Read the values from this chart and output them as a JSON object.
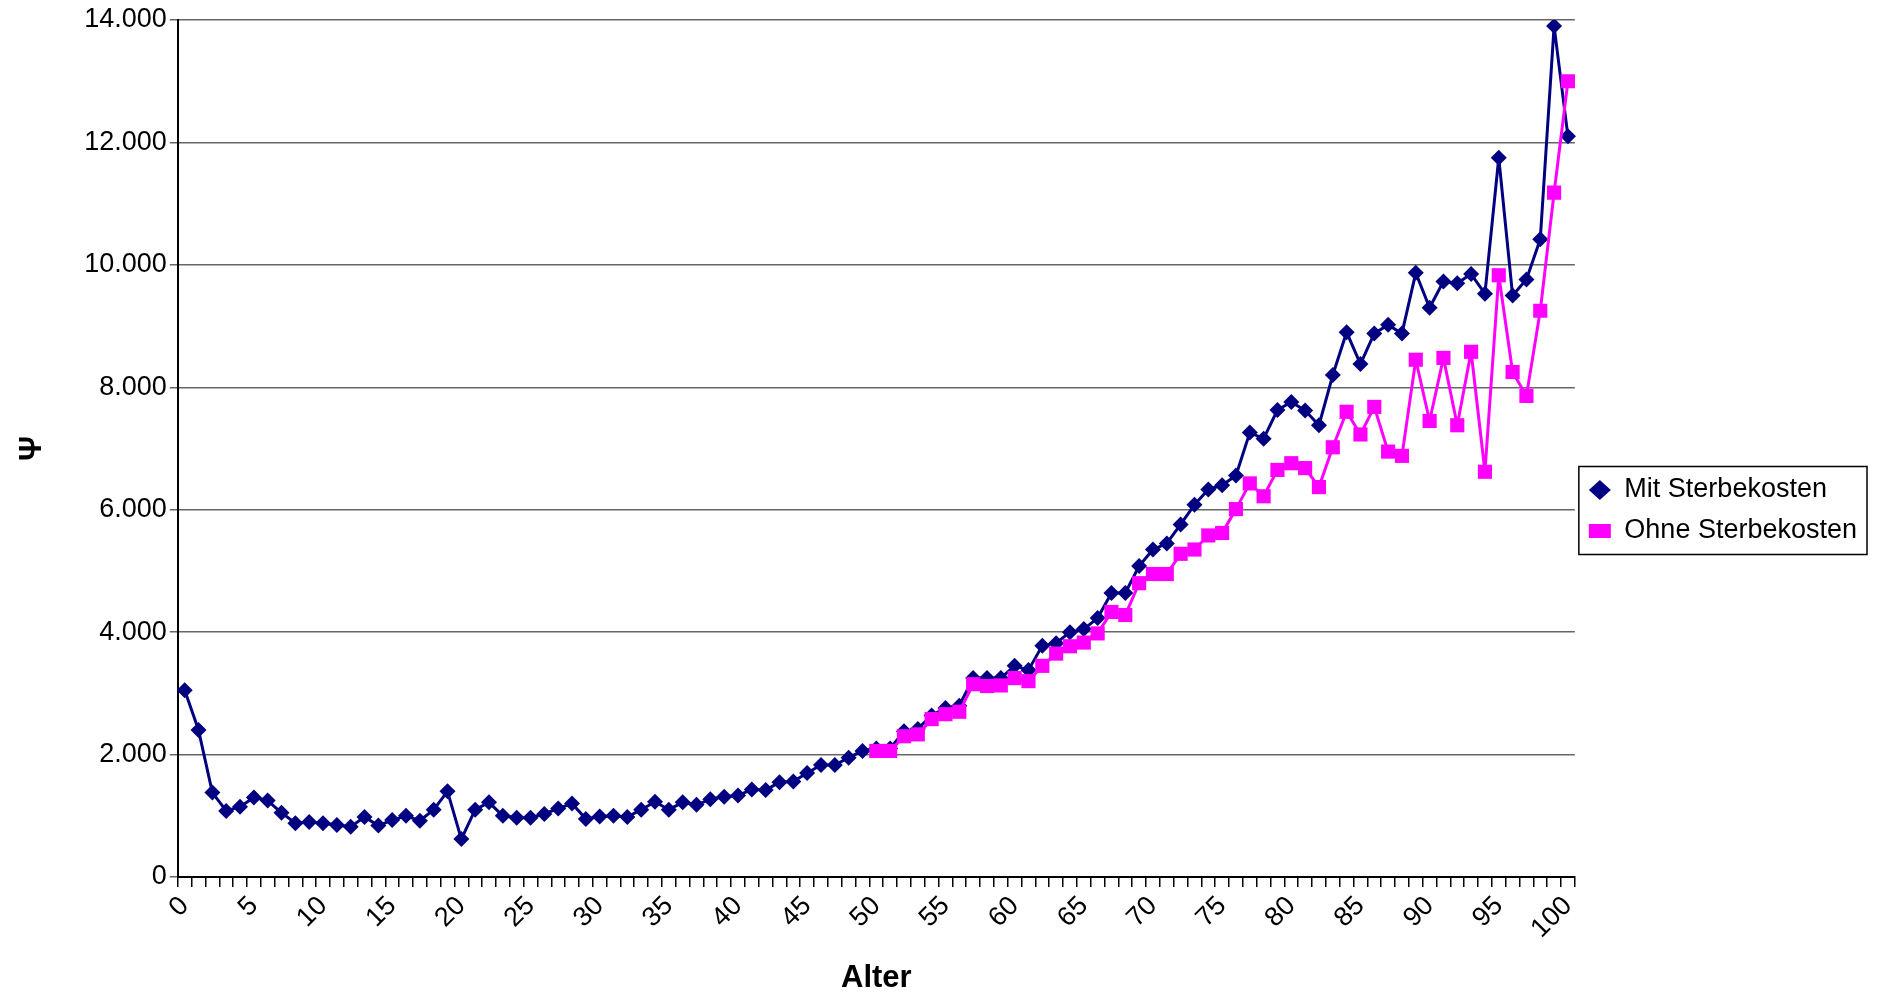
{
  "chart_data": {
    "type": "line",
    "xlabel": "Alter",
    "ylabel": "Ψ",
    "categories": [
      "0",
      null,
      null,
      null,
      null,
      "5",
      null,
      null,
      null,
      null,
      "10",
      null,
      null,
      null,
      null,
      "15",
      null,
      null,
      null,
      null,
      "20",
      null,
      null,
      null,
      null,
      "25",
      null,
      null,
      null,
      null,
      "30",
      null,
      null,
      null,
      null,
      "35",
      null,
      null,
      null,
      null,
      "40",
      null,
      null,
      null,
      null,
      "45",
      null,
      null,
      null,
      null,
      "50",
      null,
      null,
      null,
      null,
      "55",
      null,
      null,
      null,
      null,
      "60",
      null,
      null,
      null,
      null,
      "65",
      null,
      null,
      null,
      null,
      "70",
      null,
      null,
      null,
      null,
      "75",
      null,
      null,
      null,
      null,
      "80",
      null,
      null,
      null,
      null,
      "85",
      null,
      null,
      null,
      null,
      "90",
      null,
      null,
      null,
      null,
      "95",
      null,
      null,
      null,
      null,
      "100"
    ],
    "series": [
      {
        "name": "Mit Sterbekosten",
        "color": "#000080",
        "marker": "diamond",
        "values": [
          3050,
          2400,
          1380,
          1080,
          1150,
          1300,
          1250,
          1050,
          880,
          900,
          880,
          850,
          820,
          980,
          840,
          930,
          1000,
          920,
          1100,
          1400,
          620,
          1100,
          1220,
          1000,
          970,
          970,
          1030,
          1120,
          1200,
          950,
          990,
          1000,
          980,
          1100,
          1230,
          1100,
          1220,
          1180,
          1270,
          1310,
          1330,
          1430,
          1420,
          1550,
          1560,
          1700,
          1830,
          1830,
          1950,
          2060,
          2100,
          2100,
          2380,
          2420,
          2640,
          2760,
          2800,
          3250,
          3250,
          3250,
          3450,
          3380,
          3780,
          3820,
          4000,
          4050,
          4230,
          4640,
          4640,
          5080,
          5350,
          5450,
          5760,
          6080,
          6330,
          6400,
          6560,
          7260,
          7160,
          7630,
          7760,
          7620,
          7380,
          8200,
          8900,
          8380,
          8880,
          9020,
          8880,
          9870,
          9300,
          9730,
          9700,
          9850,
          9530,
          11750,
          9500,
          9760,
          10420,
          13900,
          12100
        ]
      },
      {
        "name": "Ohne Sterbekosten",
        "color": "#ff00ff",
        "marker": "square",
        "values": [
          null,
          null,
          null,
          null,
          null,
          null,
          null,
          null,
          null,
          null,
          null,
          null,
          null,
          null,
          null,
          null,
          null,
          null,
          null,
          null,
          null,
          null,
          null,
          null,
          null,
          null,
          null,
          null,
          null,
          null,
          null,
          null,
          null,
          null,
          null,
          null,
          null,
          null,
          null,
          null,
          null,
          null,
          null,
          null,
          null,
          null,
          null,
          null,
          null,
          null,
          2060,
          2060,
          2300,
          2330,
          2580,
          2660,
          2700,
          3150,
          3120,
          3130,
          3250,
          3200,
          3450,
          3650,
          3770,
          3830,
          3980,
          4330,
          4280,
          4800,
          4950,
          4950,
          5280,
          5350,
          5580,
          5620,
          6010,
          6430,
          6220,
          6650,
          6760,
          6680,
          6370,
          7020,
          7600,
          7230,
          7680,
          6950,
          6880,
          8450,
          7450,
          8480,
          7380,
          8580,
          6620,
          9830,
          8250,
          7860,
          9250,
          11180,
          13000
        ]
      }
    ],
    "ylim": [
      0,
      14000
    ],
    "yticks": [
      0,
      {
        "value": 2000,
        "label": "2.000"
      },
      {
        "value": 4000,
        "label": "4.000"
      },
      {
        "value": 6000,
        "label": "6.000"
      },
      {
        "value": 8000,
        "label": "8.000"
      },
      {
        "value": 10000,
        "label": "10.000"
      },
      {
        "value": 12000,
        "label": "12.000"
      },
      {
        "value": 14000,
        "label": "14.000"
      }
    ],
    "grid": "y",
    "legend": "right",
    "line_style": "solid"
  }
}
